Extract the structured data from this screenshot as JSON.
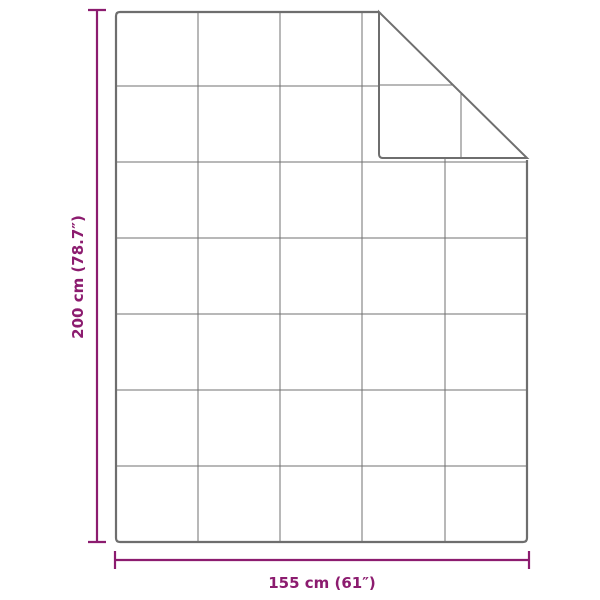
{
  "dimensions": {
    "height_label": "200 cm (78.7″)",
    "width_label": "155 cm (61″)"
  },
  "colors": {
    "dimension": "#8c1c6f",
    "outline": "#6e6e6e",
    "grid": "#707070"
  }
}
